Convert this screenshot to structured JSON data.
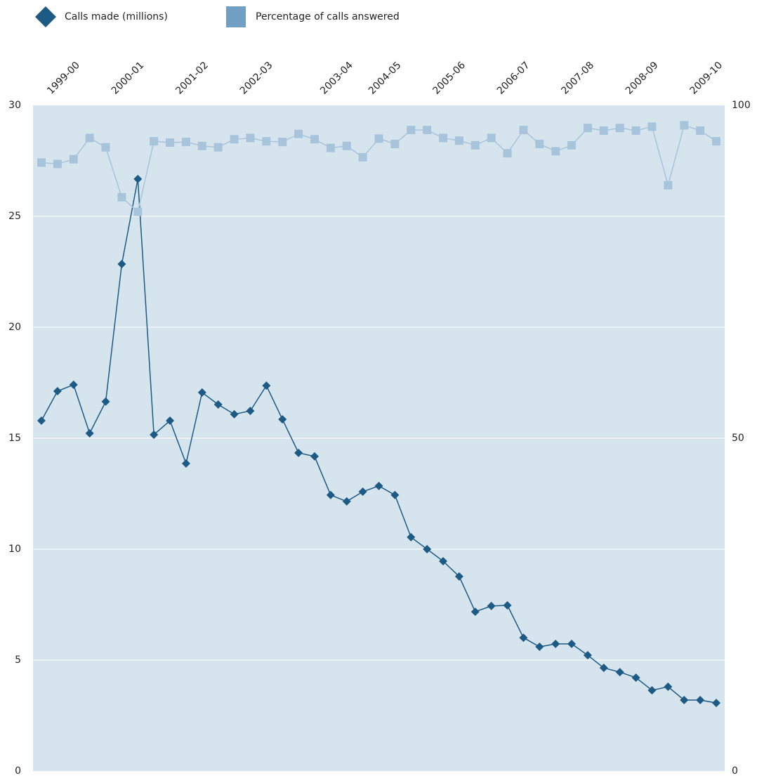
{
  "chart_data": {
    "type": "line",
    "categories": [
      null,
      "1999-00",
      null,
      null,
      null,
      "2000-01",
      null,
      null,
      null,
      "2001-02",
      null,
      null,
      null,
      "2002-03",
      null,
      null,
      null,
      null,
      "2003-04",
      null,
      null,
      "2004-05",
      null,
      null,
      null,
      "2005-06",
      null,
      null,
      null,
      "2006-07",
      null,
      null,
      null,
      "2007-08",
      null,
      null,
      null,
      "2008-09",
      null,
      null,
      null,
      "2009-10",
      null
    ],
    "series": [
      {
        "name": "Calls made (millions)",
        "color": "#1d5a84",
        "marker": "diamond",
        "values": [
          15.79,
          17.12,
          17.41,
          15.22,
          16.65,
          22.85,
          26.68,
          15.16,
          15.79,
          13.86,
          17.06,
          16.52,
          16.08,
          16.23,
          17.37,
          15.85,
          14.34,
          14.18,
          12.44,
          12.15,
          12.59,
          12.85,
          12.44,
          10.54,
          10.0,
          9.46,
          8.77,
          7.18,
          7.44,
          7.47,
          6.01,
          5.6,
          5.73,
          5.73,
          5.22,
          4.65,
          4.46,
          4.21,
          3.64,
          3.8,
          3.2,
          3.2,
          3.07
        ]
      },
      {
        "name": "Percentage of calls answered",
        "color": "#a8c4da",
        "legend_color": "#6fa0c4",
        "marker": "square",
        "axis": "y2",
        "values": [
          91.4,
          91.2,
          91.9,
          95.1,
          93.7,
          86.2,
          84.0,
          94.6,
          94.4,
          94.5,
          93.9,
          93.7,
          94.9,
          95.1,
          94.6,
          94.5,
          95.7,
          94.9,
          93.6,
          93.9,
          92.2,
          95.0,
          94.2,
          96.3,
          96.3,
          95.1,
          94.7,
          94.0,
          95.1,
          92.8,
          96.3,
          94.2,
          93.1,
          94.0,
          96.6,
          96.2,
          96.6,
          96.2,
          96.8,
          88.0,
          97.0,
          96.2,
          94.6
        ]
      }
    ],
    "ylim": [
      0,
      30
    ],
    "yticks": [
      0,
      5,
      10,
      15,
      20,
      25,
      30
    ],
    "y2lim": [
      0,
      100
    ],
    "y2ticks": [
      0,
      50,
      100
    ],
    "grid": true,
    "legend": "top-left",
    "plot_background": "#d6e4ee"
  }
}
